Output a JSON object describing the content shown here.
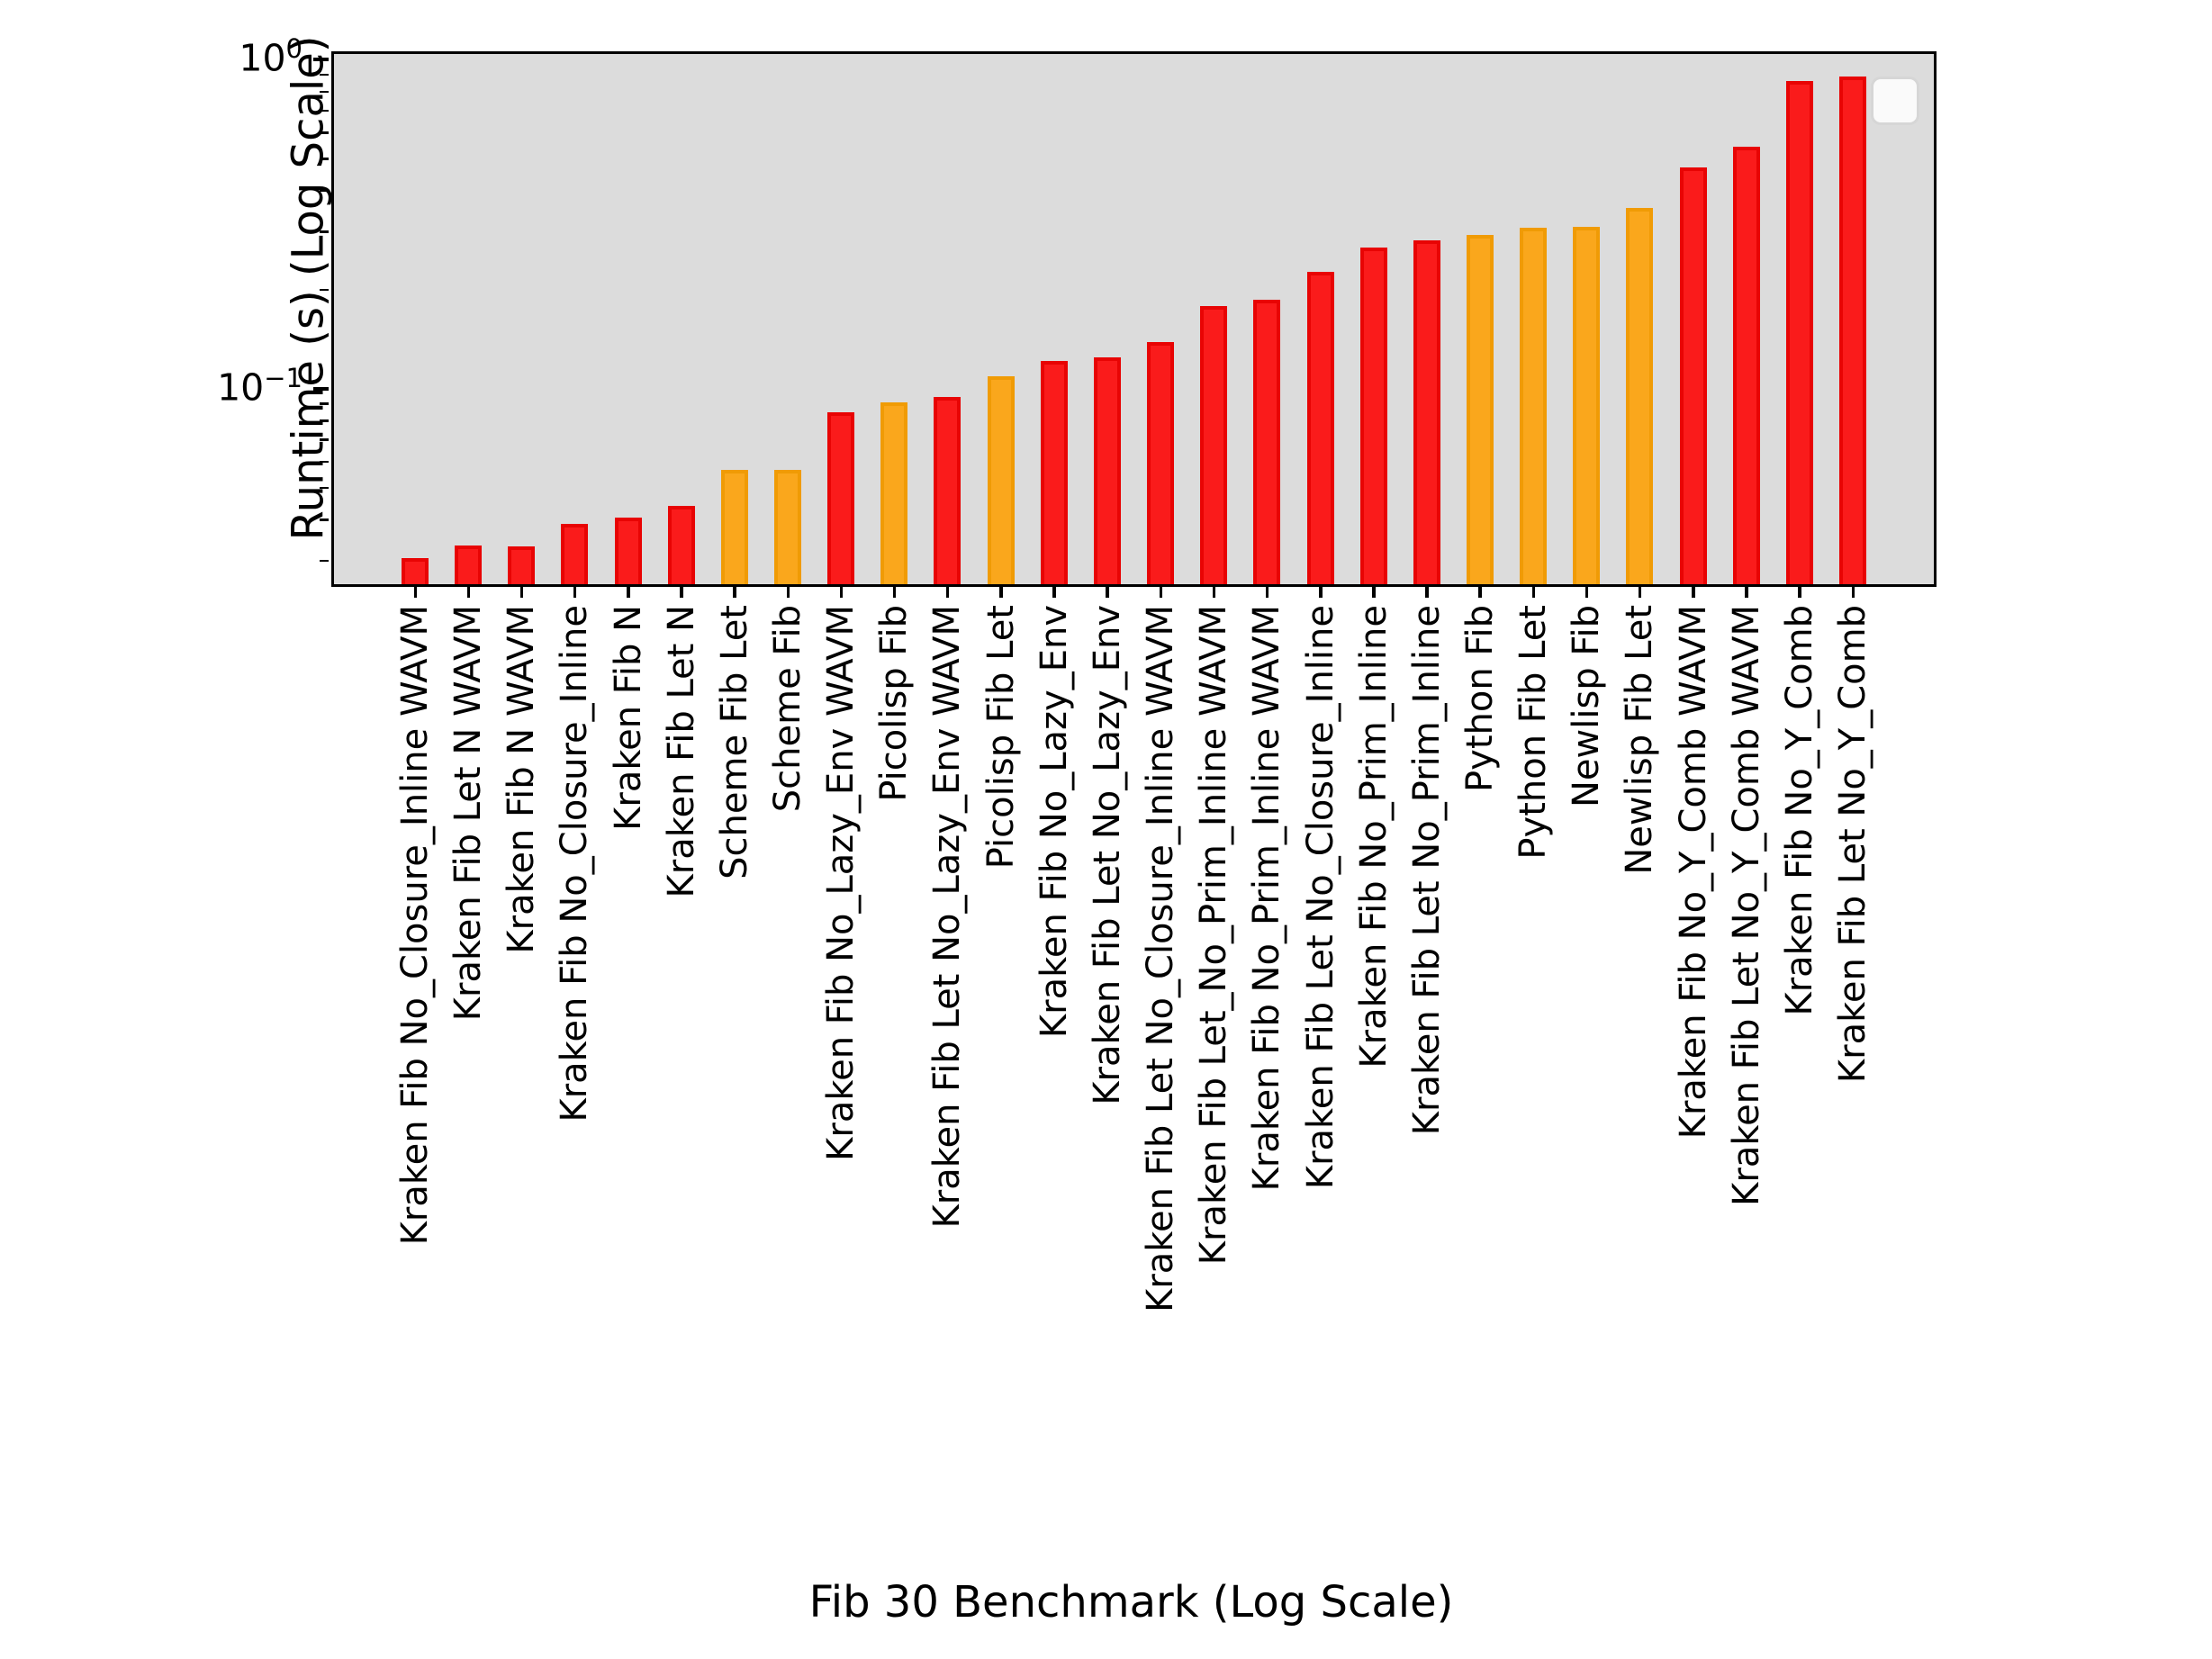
{
  "chart_data": {
    "type": "bar",
    "title": "",
    "xlabel": "Fib 30 Benchmark (Log Scale)",
    "ylabel": "Runtime (s) (Log Scale)",
    "yscale": "log",
    "ylim": [
      0.0259,
      1.06
    ],
    "grid": false,
    "plot_background": "#dcdcdc",
    "categories": [
      "Kraken Fib No_Closure_Inline WAVM",
      "Kraken Fib Let N WAVM",
      "Kraken Fib N WAVM",
      "Kraken Fib No_Closure_Inline",
      "Kraken Fib N",
      "Kraken Fib Let N",
      "Scheme Fib Let",
      "Scheme Fib",
      "Kraken Fib No_Lazy_Env WAVM",
      "Picolisp Fib",
      "Kraken Fib Let No_Lazy_Env WAVM",
      "Picolisp Fib Let",
      "Kraken Fib No_Lazy_Env",
      "Kraken Fib Let No_Lazy_Env",
      "Kraken Fib Let No_Closure_Inline WAVM",
      "Kraken Fib Let_No_Prim_Inline WAVM",
      "Kraken Fib No_Prim_Inline WAVM",
      "Kraken Fib Let No_Closure_Inline",
      "Kraken Fib No_Prim_Inline",
      "Kraken Fib Let No_Prim_Inline",
      "Python Fib",
      "Python Fib Let",
      "Newlisp Fib",
      "Newlisp Fib Let",
      "Kraken Fib No_Y_Comb WAVM",
      "Kraken Fib Let No_Y_Comb WAVM",
      "Kraken Fib No_Y_Comb",
      "Kraken Fib Let No_Y_Comb"
    ],
    "values": [
      0.0311,
      0.034,
      0.0338,
      0.0396,
      0.0413,
      0.0449,
      0.0578,
      0.0578,
      0.0865,
      0.0927,
      0.0963,
      0.111,
      0.124,
      0.127,
      0.141,
      0.181,
      0.19,
      0.231,
      0.274,
      0.287,
      0.298,
      0.315,
      0.317,
      0.36,
      0.478,
      0.553,
      0.876,
      0.904
    ],
    "bar_color_keys": [
      "red",
      "red",
      "red",
      "red",
      "red",
      "red",
      "orange",
      "orange",
      "red",
      "orange",
      "red",
      "orange",
      "red",
      "red",
      "red",
      "red",
      "red",
      "red",
      "red",
      "red",
      "orange",
      "orange",
      "orange",
      "orange",
      "red",
      "red",
      "red",
      "red"
    ],
    "colors": {
      "red_fill": "#fa1b1b",
      "red_edge": "#e80404",
      "orange_fill": "#faa71c",
      "orange_edge": "#f0f0f0"
    },
    "yticks_major": [
      {
        "value": 1,
        "base": "10",
        "exp": "0"
      },
      {
        "value": 0.1,
        "base": "10",
        "exp": "−1"
      }
    ],
    "yticks_minor": [
      0.03,
      0.04,
      0.05,
      0.06,
      0.07,
      0.08,
      0.09,
      0.2,
      0.3,
      0.4,
      0.5,
      0.6,
      0.7,
      0.8,
      0.9
    ],
    "legend": {
      "position": "upper right",
      "entries": []
    }
  }
}
